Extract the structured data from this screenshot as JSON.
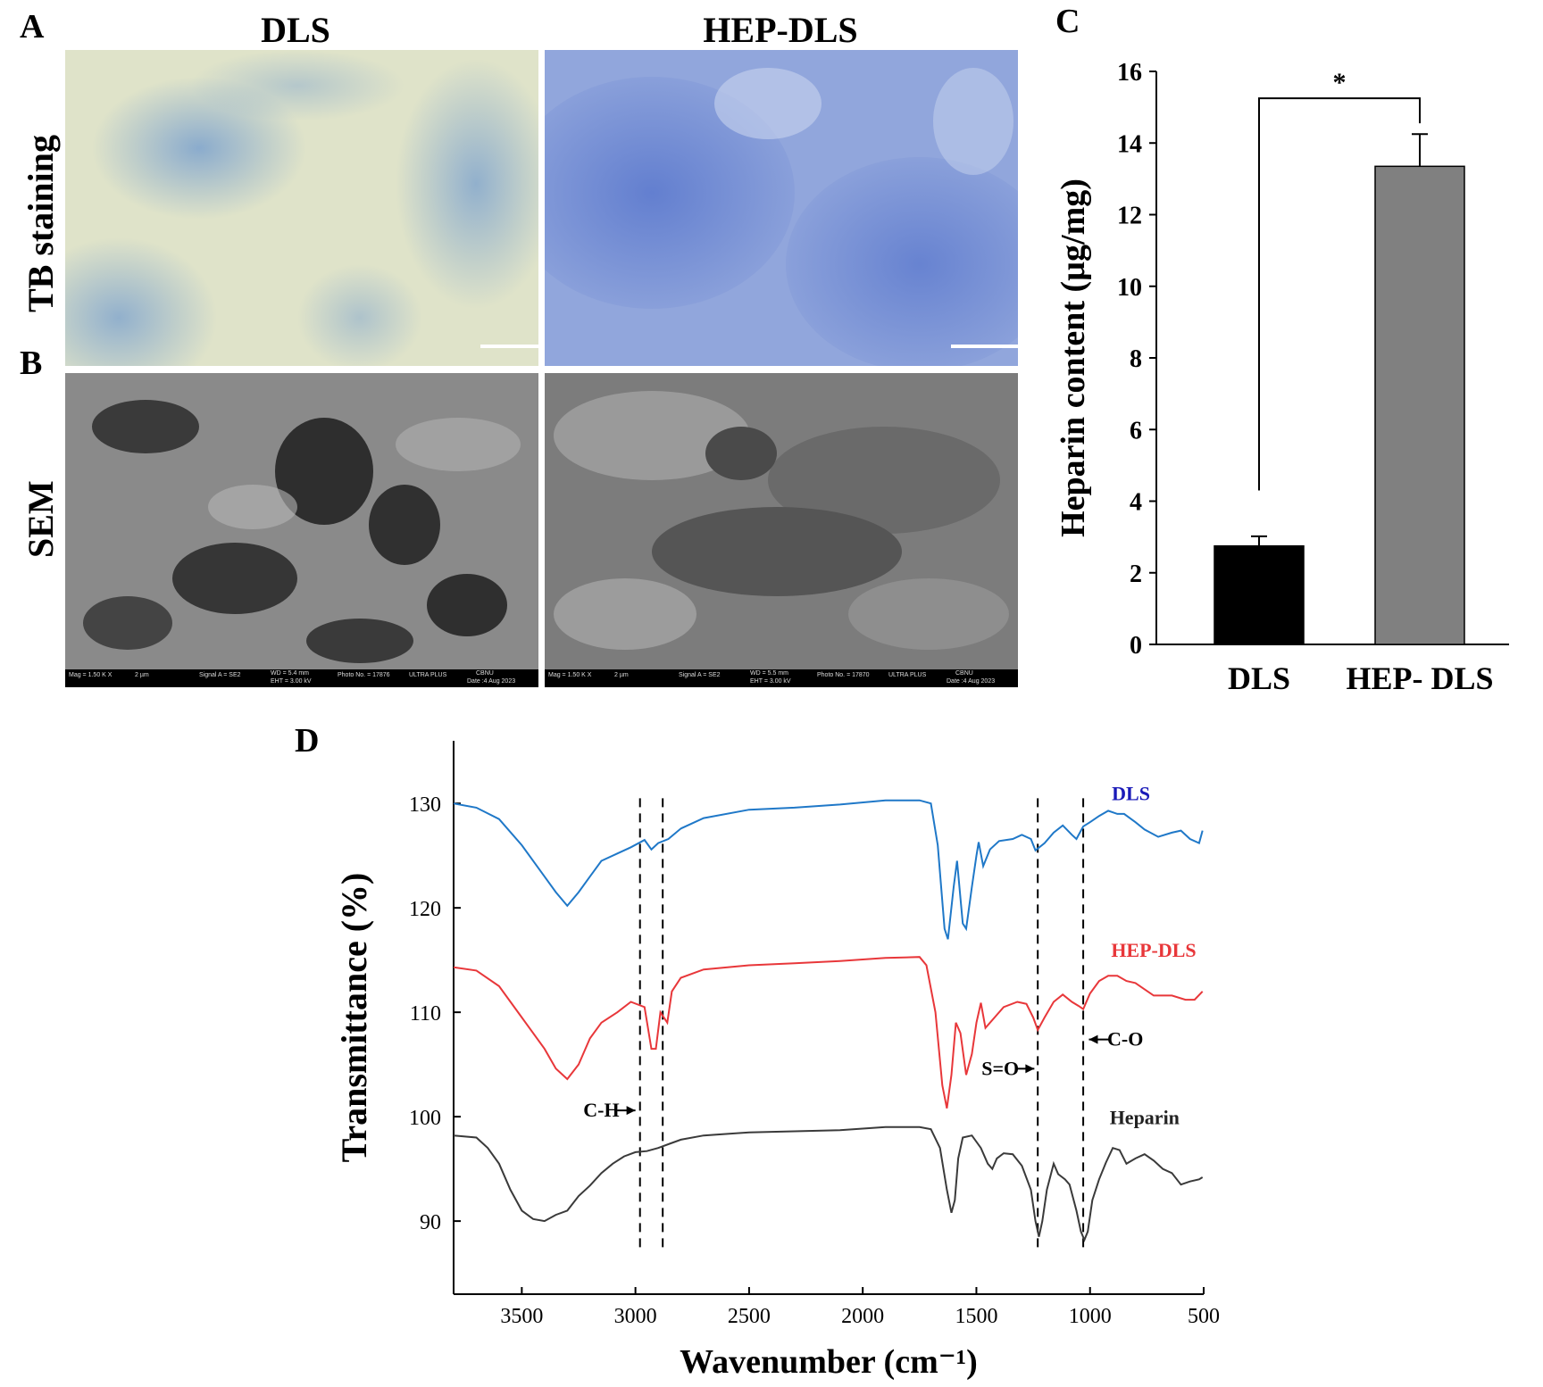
{
  "panels": {
    "A": "A",
    "B": "B",
    "C": "C",
    "D": "D"
  },
  "columns": {
    "dls": "DLS",
    "hep": "HEP-DLS"
  },
  "rows": {
    "tb": "TB staining",
    "sem": "SEM"
  },
  "sem_info": {
    "dls": [
      "Mag = 1.50 K X",
      "2 µm",
      "Signal A = SE2",
      "WD = 5.4 mm",
      "EHT = 3.00 kV",
      "Photo No. = 17876",
      "ULTRA PLUS",
      "CBNU",
      "Date :4 Aug 2023"
    ],
    "hep": [
      "Mag = 1.50 K X",
      "2 µm",
      "Signal A = SE2",
      "WD = 5.5 mm",
      "EHT = 3.00 kV",
      "Photo No. = 17870",
      "ULTRA PLUS",
      "CBNU",
      "Date :4 Aug 2023"
    ]
  },
  "colors": {
    "dls": "#1f78c8",
    "hep": "#e8373a",
    "heparin": "#3a3a3a",
    "bar_dls": "#000000",
    "bar_hep": "#808080"
  },
  "chart_data": [
    {
      "type": "bar",
      "categories": [
        "DLS",
        "HEP- DLS"
      ],
      "values": [
        2.75,
        13.35
      ],
      "errors": [
        0.27,
        0.9
      ],
      "ylabel": "Heparin content (µg/mg)",
      "ylim": [
        0,
        16
      ],
      "yticks": [
        "0",
        "2",
        "4",
        "6",
        "8",
        "10",
        "12",
        "14",
        "16"
      ],
      "significance": "*"
    },
    {
      "type": "line",
      "xlabel": "Wavenumber (cm⁻¹)",
      "ylabel": "Transmittance (%)",
      "xlim": [
        3800,
        500
      ],
      "ylim": [
        83,
        136
      ],
      "xticks": [
        "3500",
        "3000",
        "2500",
        "2000",
        "1500",
        "1000",
        "500"
      ],
      "yticks": [
        "90",
        "100",
        "110",
        "120",
        "130"
      ],
      "series": [
        {
          "name": "DLS",
          "points": [
            [
              3800,
              130
            ],
            [
              3700,
              129.6
            ],
            [
              3600,
              128.5
            ],
            [
              3500,
              126
            ],
            [
              3400,
              123
            ],
            [
              3350,
              121.5
            ],
            [
              3300,
              120.2
            ],
            [
              3250,
              121.5
            ],
            [
              3200,
              123
            ],
            [
              3150,
              124.5
            ],
            [
              3080,
              125.2
            ],
            [
              3020,
              125.8
            ],
            [
              2960,
              126.5
            ],
            [
              2930,
              125.6
            ],
            [
              2900,
              126.2
            ],
            [
              2855,
              126.6
            ],
            [
              2800,
              127.6
            ],
            [
              2700,
              128.6
            ],
            [
              2500,
              129.4
            ],
            [
              2300,
              129.6
            ],
            [
              2100,
              129.9
            ],
            [
              1900,
              130.3
            ],
            [
              1750,
              130.3
            ],
            [
              1700,
              130
            ],
            [
              1670,
              126
            ],
            [
              1640,
              118
            ],
            [
              1625,
              117
            ],
            [
              1600,
              122
            ],
            [
              1585,
              124.5
            ],
            [
              1560,
              118.5
            ],
            [
              1545,
              118
            ],
            [
              1520,
              122
            ],
            [
              1500,
              125
            ],
            [
              1490,
              126.3
            ],
            [
              1470,
              124
            ],
            [
              1440,
              125.6
            ],
            [
              1400,
              126.4
            ],
            [
              1340,
              126.6
            ],
            [
              1300,
              127
            ],
            [
              1260,
              126.6
            ],
            [
              1240,
              125.5
            ],
            [
              1200,
              126.2
            ],
            [
              1160,
              127.2
            ],
            [
              1120,
              127.9
            ],
            [
              1080,
              127
            ],
            [
              1060,
              126.6
            ],
            [
              1030,
              127.8
            ],
            [
              1000,
              128.2
            ],
            [
              960,
              128.8
            ],
            [
              920,
              129.3
            ],
            [
              880,
              129
            ],
            [
              850,
              129
            ],
            [
              800,
              128.2
            ],
            [
              760,
              127.5
            ],
            [
              700,
              126.8
            ],
            [
              640,
              127.2
            ],
            [
              600,
              127.4
            ],
            [
              560,
              126.6
            ],
            [
              520,
              126.2
            ],
            [
              505,
              127.4
            ]
          ]
        },
        {
          "name": "HEP-DLS",
          "points": [
            [
              3800,
              114.3
            ],
            [
              3700,
              114
            ],
            [
              3600,
              112.5
            ],
            [
              3500,
              109.5
            ],
            [
              3400,
              106.5
            ],
            [
              3350,
              104.6
            ],
            [
              3300,
              103.6
            ],
            [
              3250,
              105
            ],
            [
              3200,
              107.5
            ],
            [
              3150,
              109
            ],
            [
              3080,
              110
            ],
            [
              3020,
              111
            ],
            [
              2960,
              110.5
            ],
            [
              2930,
              106.5
            ],
            [
              2910,
              106.5
            ],
            [
              2890,
              110
            ],
            [
              2860,
              109
            ],
            [
              2840,
              112
            ],
            [
              2800,
              113.3
            ],
            [
              2700,
              114.1
            ],
            [
              2500,
              114.5
            ],
            [
              2300,
              114.7
            ],
            [
              2100,
              114.9
            ],
            [
              1900,
              115.2
            ],
            [
              1750,
              115.3
            ],
            [
              1720,
              114.5
            ],
            [
              1680,
              110
            ],
            [
              1650,
              103
            ],
            [
              1630,
              100.8
            ],
            [
              1610,
              104
            ],
            [
              1590,
              109
            ],
            [
              1570,
              108
            ],
            [
              1545,
              104
            ],
            [
              1520,
              106
            ],
            [
              1500,
              109
            ],
            [
              1480,
              110.9
            ],
            [
              1460,
              108.5
            ],
            [
              1420,
              109.5
            ],
            [
              1380,
              110.5
            ],
            [
              1320,
              111
            ],
            [
              1280,
              110.8
            ],
            [
              1250,
              109.5
            ],
            [
              1230,
              108.3
            ],
            [
              1200,
              109.5
            ],
            [
              1160,
              111
            ],
            [
              1120,
              111.7
            ],
            [
              1080,
              111
            ],
            [
              1050,
              110.6
            ],
            [
              1030,
              110.3
            ],
            [
              1000,
              111.8
            ],
            [
              960,
              113
            ],
            [
              920,
              113.5
            ],
            [
              880,
              113.5
            ],
            [
              840,
              113
            ],
            [
              800,
              112.8
            ],
            [
              760,
              112.2
            ],
            [
              720,
              111.6
            ],
            [
              640,
              111.6
            ],
            [
              580,
              111.2
            ],
            [
              540,
              111.2
            ],
            [
              505,
              112
            ]
          ]
        },
        {
          "name": "Heparin",
          "points": [
            [
              3800,
              98.2
            ],
            [
              3700,
              98
            ],
            [
              3650,
              97
            ],
            [
              3600,
              95.5
            ],
            [
              3550,
              93
            ],
            [
              3500,
              91
            ],
            [
              3450,
              90.2
            ],
            [
              3400,
              90
            ],
            [
              3350,
              90.6
            ],
            [
              3300,
              91
            ],
            [
              3250,
              92.4
            ],
            [
              3200,
              93.4
            ],
            [
              3150,
              94.6
            ],
            [
              3100,
              95.5
            ],
            [
              3050,
              96.2
            ],
            [
              3000,
              96.6
            ],
            [
              2950,
              96.7
            ],
            [
              2900,
              97
            ],
            [
              2850,
              97.4
            ],
            [
              2800,
              97.8
            ],
            [
              2700,
              98.2
            ],
            [
              2500,
              98.5
            ],
            [
              2300,
              98.6
            ],
            [
              2100,
              98.7
            ],
            [
              1900,
              99
            ],
            [
              1750,
              99
            ],
            [
              1700,
              98.8
            ],
            [
              1660,
              97
            ],
            [
              1630,
              93
            ],
            [
              1610,
              90.8
            ],
            [
              1595,
              92
            ],
            [
              1580,
              96
            ],
            [
              1560,
              98
            ],
            [
              1520,
              98.2
            ],
            [
              1480,
              97
            ],
            [
              1450,
              95.5
            ],
            [
              1430,
              95
            ],
            [
              1410,
              96
            ],
            [
              1380,
              96.5
            ],
            [
              1340,
              96.4
            ],
            [
              1300,
              95.3
            ],
            [
              1260,
              93
            ],
            [
              1240,
              90
            ],
            [
              1225,
              88.5
            ],
            [
              1210,
              90
            ],
            [
              1190,
              93
            ],
            [
              1160,
              95.5
            ],
            [
              1140,
              94.5
            ],
            [
              1110,
              94
            ],
            [
              1090,
              93.5
            ],
            [
              1060,
              91
            ],
            [
              1040,
              89
            ],
            [
              1025,
              88.2
            ],
            [
              1010,
              89
            ],
            [
              990,
              92
            ],
            [
              960,
              94
            ],
            [
              930,
              95.6
            ],
            [
              900,
              97
            ],
            [
              870,
              96.8
            ],
            [
              840,
              95.5
            ],
            [
              800,
              96
            ],
            [
              760,
              96.4
            ],
            [
              720,
              95.8
            ],
            [
              680,
              95
            ],
            [
              640,
              94.6
            ],
            [
              600,
              93.5
            ],
            [
              560,
              93.8
            ],
            [
              520,
              94
            ],
            [
              505,
              94.2
            ]
          ]
        }
      ],
      "dashed_lines": [
        2980,
        2880,
        1230,
        1030
      ],
      "series_labels": [
        "DLS",
        "HEP-DLS",
        "Heparin"
      ],
      "annotations": {
        "ch": "C-H",
        "so": "S=O",
        "co": "C-O"
      }
    }
  ]
}
